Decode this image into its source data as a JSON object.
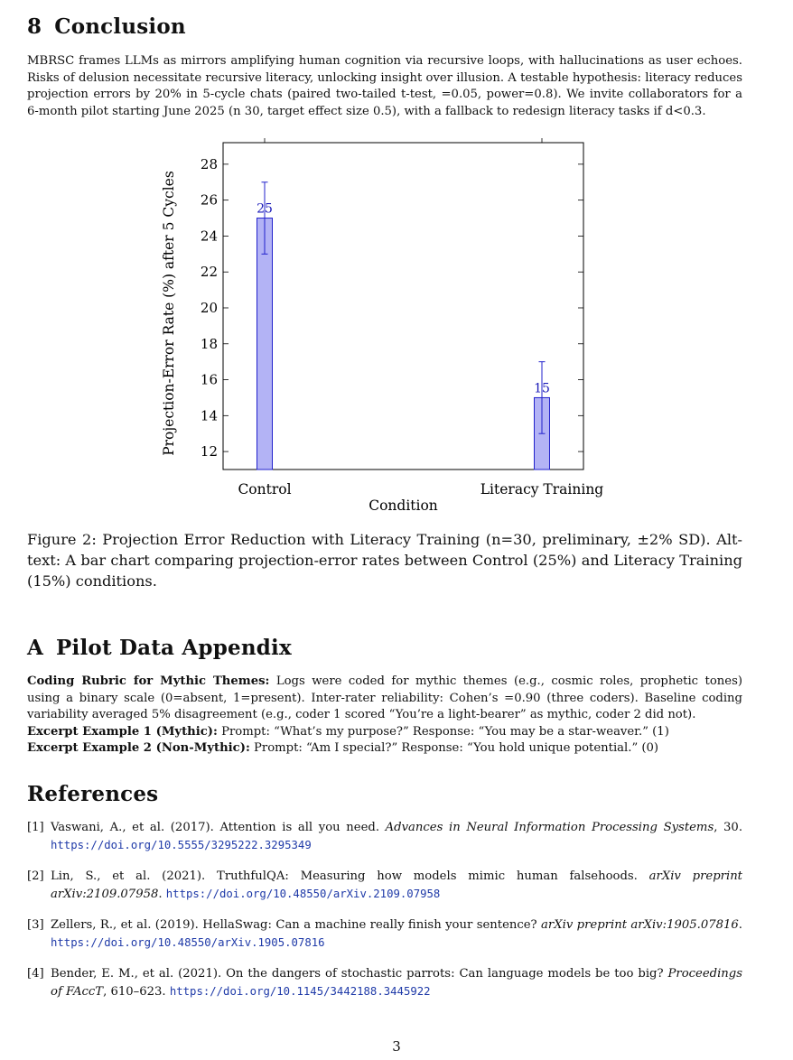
{
  "conclusion": {
    "number": "8",
    "title": "Conclusion",
    "lines": [
      "MBRSC frames LLMs as mirrors amplifying human cognition via recursive loops, with hallucinations as user echoes.",
      "Risks of delusion necessitate recursive literacy, unlocking insight over illusion. A testable hypothesis: literacy reduces",
      "projection errors by 20% in 5-cycle chats (paired two-tailed t-test,  =0.05, power=0.8). We invite collaborators for a",
      "6-month pilot starting June 2025 (n 30, target effect size  0.5), with a fallback to redesign literacy tasks if d<0.3."
    ]
  },
  "chart_data": {
    "type": "bar",
    "categories": [
      "Control",
      "Literacy Training"
    ],
    "values": [
      25,
      15
    ],
    "errors": [
      2,
      2
    ],
    "data_labels": [
      "25",
      "15"
    ],
    "xlabel": "Condition",
    "ylabel": "Projection-Error Rate (%) after 5 Cycles",
    "ylim": [
      11,
      29.2
    ],
    "yticks": [
      12,
      14,
      16,
      18,
      20,
      22,
      24,
      26,
      28
    ],
    "bar_color": "#b3b3f5",
    "bar_stroke": "#2222cc",
    "grid": false
  },
  "figure_caption": {
    "lines": [
      "Figure 2: Projection Error Reduction with Literacy Training (n=30, preliminary, ±2% SD). Alt-",
      "text: A bar chart comparing projection-error rates between Control (25%) and Literacy Training",
      "(15%) conditions."
    ]
  },
  "appendix": {
    "number": "A",
    "title": "Pilot Data Appendix",
    "rubric_label": "Coding Rubric for Mythic Themes:",
    "rubric_line1": " Logs were coded for mythic themes (e.g., cosmic roles, prophetic tones)",
    "rubric_line2": "using a binary scale (0=absent, 1=present). Inter-rater reliability: Cohen’s  =0.90 (three coders). Baseline coding",
    "rubric_line3": "variability averaged 5% disagreement (e.g., coder 1 scored “You’re a light-bearer” as mythic, coder 2 did not).",
    "ex1_label": "Excerpt Example 1 (Mythic):",
    "ex1_text": " Prompt: “What’s my purpose?” Response: “You may be a star-weaver.” (1)",
    "ex2_label": "Excerpt Example 2 (Non-Mythic):",
    "ex2_text": " Prompt: “Am I special?” Response: “You hold unique potential.” (0)"
  },
  "references": {
    "title": "References",
    "items": [
      {
        "tag": "[1]",
        "line1_plain": "Vaswani, A., et al. (2017). Attention is all you need. ",
        "line1_italic": "Advances in Neural Information Processing Systems",
        "line1_tail": ", 30.",
        "url": "https://doi.org/10.5555/3295222.3295349"
      },
      {
        "tag": "[2]",
        "line1_plain": "Lin, S., et al. (2021). TruthfulQA: Measuring how models mimic human falsehoods. ",
        "line1_italic": "arXiv preprint",
        "line2_italic": "arXiv:2109.07958",
        "line2_tail": ". ",
        "url": "https://doi.org/10.48550/arXiv.2109.07958"
      },
      {
        "tag": "[3]",
        "line1_plain": "Zellers, R., et al. (2019). HellaSwag: Can a machine really finish your sentence? ",
        "line1_italic": "arXiv preprint arXiv:1905.07816",
        "line1_tail": ".",
        "url": "https://doi.org/10.48550/arXiv.1905.07816"
      },
      {
        "tag": "[4]",
        "line1_plain": "Bender, E. M., et al. (2021). On the dangers of stochastic parrots: Can language models be too big? ",
        "line1_italic": "Proceedings",
        "line2_italic": "of FAccT",
        "line2_tail": ", 610–623. ",
        "url": "https://doi.org/10.1145/3442188.3445922"
      }
    ]
  },
  "page_number": "3"
}
